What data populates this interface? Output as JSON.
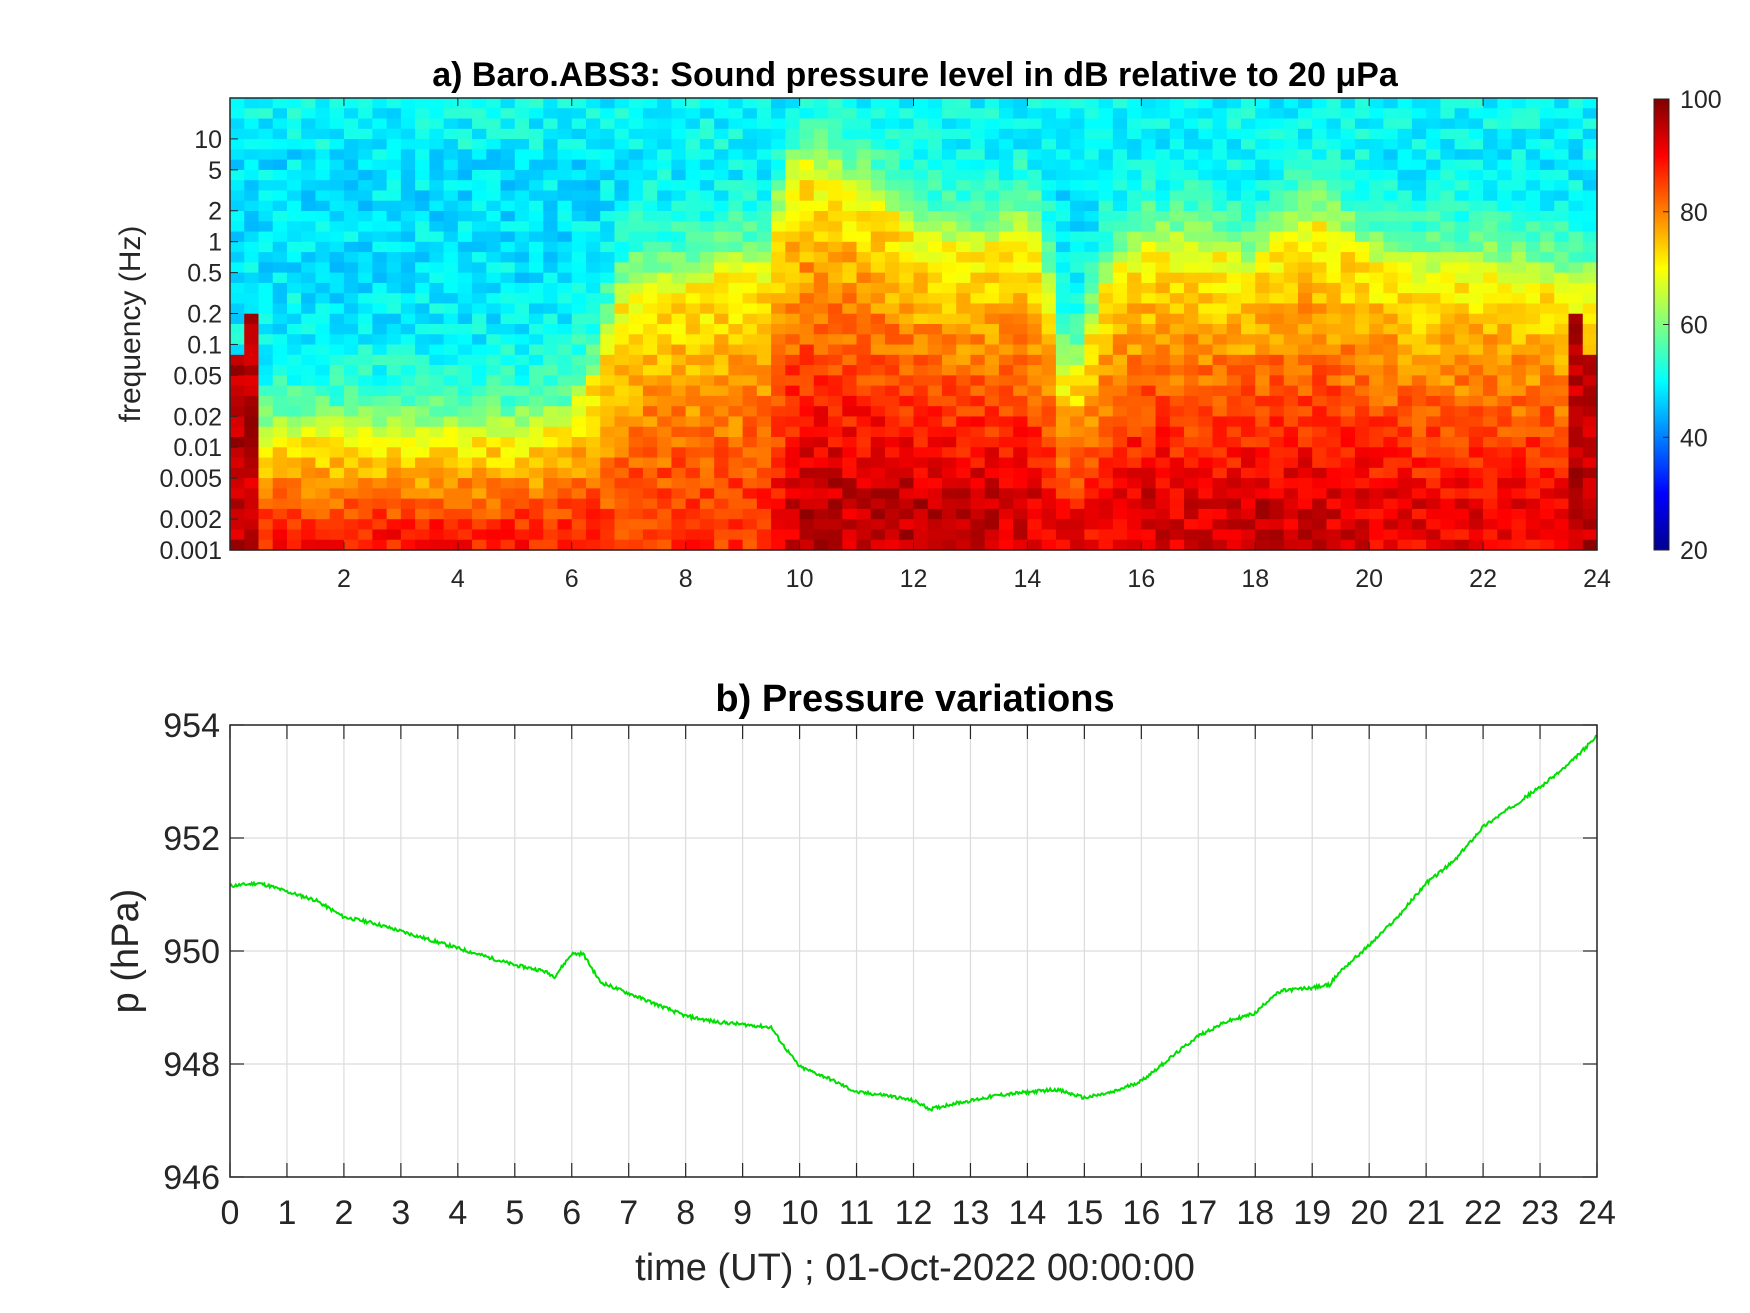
{
  "chart_data": [
    {
      "type": "heatmap",
      "title": "a) Baro.ABS3: Sound pressure level in dB relative to 20 μPa",
      "xlabel": "",
      "ylabel": "frequency (Hz)",
      "xlim": [
        0,
        24
      ],
      "ylim": [
        0.001,
        25
      ],
      "yscale": "log",
      "x_ticks": [
        2,
        4,
        6,
        8,
        10,
        12,
        14,
        16,
        18,
        20,
        22,
        24
      ],
      "x_tick_labels": [
        "2",
        "4",
        "6",
        "8",
        "10",
        "12",
        "14",
        "16",
        "18",
        "20",
        "22",
        "24"
      ],
      "y_ticks": [
        0.001,
        0.002,
        0.005,
        0.01,
        0.02,
        0.05,
        0.1,
        0.2,
        0.5,
        1,
        2,
        5,
        10
      ],
      "y_tick_labels": [
        "0.001",
        "0.002",
        "0.005",
        "0.01",
        "0.02",
        "0.05",
        "0.1",
        "0.2",
        "0.5",
        "1",
        "2",
        "5",
        "10"
      ],
      "colorbar": {
        "range": [
          20,
          100
        ],
        "ticks": [
          20,
          40,
          60,
          80,
          100
        ],
        "tick_labels": [
          "20",
          "40",
          "60",
          "80",
          "100"
        ],
        "colormap": "jet"
      },
      "profile_description_values": {
        "hours": [
          0,
          1,
          2,
          3,
          4,
          5,
          6,
          6.5,
          7,
          8,
          9,
          9.5,
          10,
          11,
          12,
          13,
          14,
          14.5,
          15,
          16,
          17,
          18,
          19,
          20,
          21,
          22,
          23,
          24
        ],
        "high_freq_edge_hz": [
          0.01,
          0.012,
          0.012,
          0.012,
          0.012,
          0.012,
          0.015,
          0.05,
          0.3,
          0.4,
          0.5,
          0.5,
          5,
          3,
          1,
          0.8,
          1.2,
          0.05,
          0.05,
          0.8,
          0.8,
          0.5,
          1.5,
          0.6,
          0.5,
          0.5,
          0.4,
          0.3
        ],
        "peak_level_db": [
          90,
          88,
          88,
          88,
          88,
          88,
          88,
          85,
          85,
          86,
          86,
          88,
          95,
          94,
          95,
          94,
          93,
          90,
          90,
          93,
          92,
          94,
          93,
          92,
          91,
          91,
          91,
          92
        ]
      }
    },
    {
      "type": "line",
      "title": "b) Pressure variations",
      "xlabel": "time (UT) ; 01-Oct-2022 00:00:00",
      "ylabel": "p (hPa)",
      "xlim": [
        0,
        24
      ],
      "ylim": [
        946,
        954
      ],
      "grid": true,
      "x_ticks": [
        0,
        1,
        2,
        3,
        4,
        5,
        6,
        7,
        8,
        9,
        10,
        11,
        12,
        13,
        14,
        15,
        16,
        17,
        18,
        19,
        20,
        21,
        22,
        23,
        24
      ],
      "x_tick_labels": [
        "0",
        "1",
        "2",
        "3",
        "4",
        "5",
        "6",
        "7",
        "8",
        "9",
        "10",
        "11",
        "12",
        "13",
        "14",
        "15",
        "16",
        "17",
        "18",
        "19",
        "20",
        "21",
        "22",
        "23",
        "24"
      ],
      "y_ticks": [
        946,
        948,
        950,
        952,
        954
      ],
      "y_tick_labels": [
        "946",
        "948",
        "950",
        "952",
        "954"
      ],
      "color": "#00e000",
      "series": [
        {
          "x": [
            0,
            0.5,
            0.7,
            1,
            1.5,
            2,
            2.5,
            3,
            3.5,
            4,
            4.5,
            5,
            5.5,
            5.7,
            6,
            6.2,
            6.5,
            7,
            7.5,
            8,
            8.5,
            9,
            9.5,
            9.7,
            10,
            10.5,
            11,
            11.5,
            12,
            12.3,
            12.7,
            13,
            13.5,
            14,
            14.5,
            15,
            15.5,
            16,
            16.5,
            17,
            17.5,
            18,
            18.3,
            18.5,
            19,
            19.3,
            19.5,
            20,
            20.5,
            21,
            21.5,
            22,
            22.5,
            23,
            23.5,
            24
          ],
          "y": [
            951.15,
            951.2,
            951.15,
            951.05,
            950.9,
            950.6,
            950.5,
            950.35,
            950.2,
            950.05,
            949.9,
            949.75,
            949.65,
            949.55,
            949.95,
            949.95,
            949.45,
            949.25,
            949.05,
            948.85,
            948.75,
            948.7,
            948.65,
            948.35,
            947.95,
            947.75,
            947.5,
            947.45,
            947.35,
            947.2,
            947.3,
            947.35,
            947.45,
            947.5,
            947.55,
            947.4,
            947.5,
            947.7,
            948.1,
            948.5,
            948.75,
            948.9,
            949.2,
            949.3,
            949.35,
            949.4,
            949.65,
            950.1,
            950.6,
            951.2,
            951.6,
            952.2,
            952.55,
            952.9,
            953.3,
            953.8
          ]
        }
      ]
    }
  ]
}
